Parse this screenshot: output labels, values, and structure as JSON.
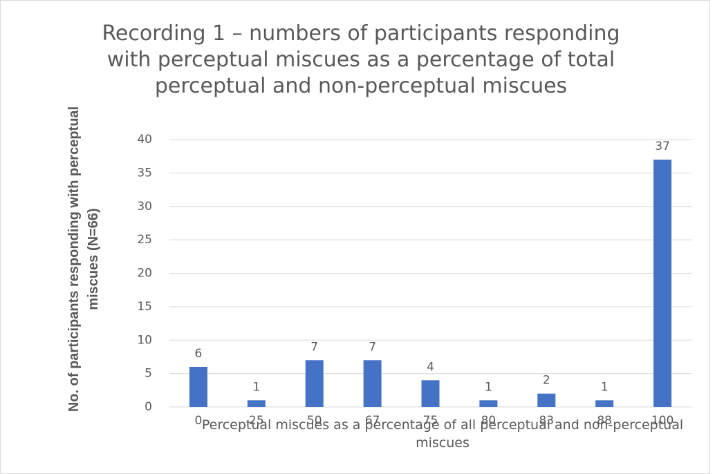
{
  "chart_data": {
    "type": "bar",
    "title": "Recording 1 – numbers of participants responding with perceptual miscues as a percentage of total perceptual and non-perceptual miscues",
    "x_label": "Perceptual miscues as a percentage of all perceptual and non-perceptual miscues",
    "y_label": "No. of participants responding with perceptual miscues (N=66)",
    "categories": [
      "0",
      "25",
      "50",
      "67",
      "75",
      "80",
      "83",
      "88",
      "100"
    ],
    "values": [
      6,
      1,
      7,
      7,
      4,
      1,
      2,
      1,
      37
    ],
    "color": "#4472c4",
    "ylim": [
      0,
      40
    ],
    "yticks": [
      0,
      5,
      10,
      15,
      20,
      25,
      30,
      35,
      40
    ],
    "grid": true
  }
}
